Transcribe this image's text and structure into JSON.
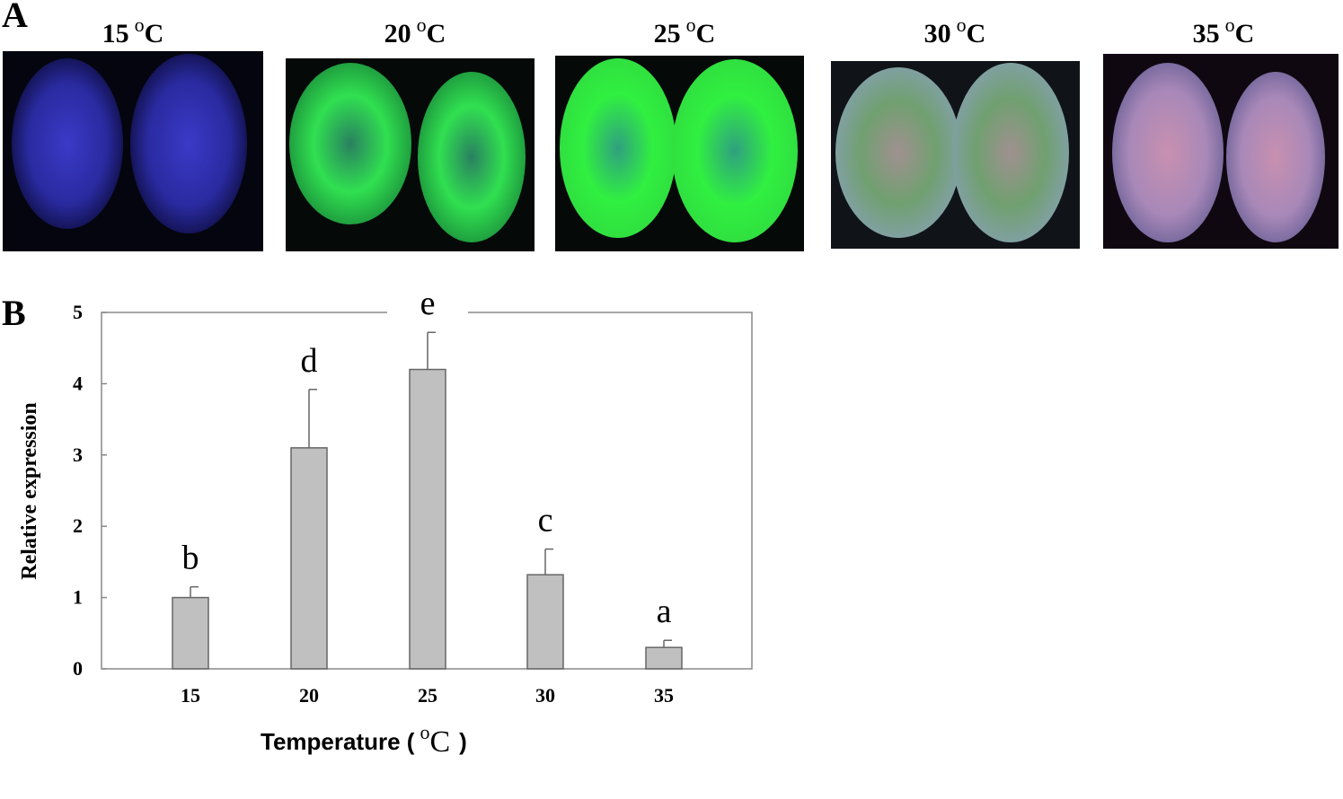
{
  "panel_a": {
    "label": "A",
    "titles": [
      {
        "temp": "15",
        "sup": "o",
        "unit": "C"
      },
      {
        "temp": "20",
        "sup": "o",
        "unit": "C"
      },
      {
        "temp": "25",
        "sup": "o",
        "unit": "C"
      },
      {
        "temp": "30",
        "sup": "o",
        "unit": "C"
      },
      {
        "temp": "35",
        "sup": "o",
        "unit": "C"
      }
    ]
  },
  "chart_data": {
    "type": "bar",
    "panel_label": "B",
    "y_label": "Relative expression",
    "x_label": {
      "text": "Temperature (",
      "sup": "o",
      "unit": "C",
      "close": ")"
    },
    "categories": [
      "15",
      "20",
      "25",
      "30",
      "35"
    ],
    "values": [
      1.0,
      3.1,
      4.2,
      1.32,
      0.3
    ],
    "errors": [
      0.15,
      0.82,
      0.52,
      0.36,
      0.1
    ],
    "annotations": [
      "b",
      "d",
      "e",
      "c",
      "a"
    ],
    "color": "#c0c0c0",
    "ylim": [
      0,
      5
    ],
    "yticks": [
      0,
      1,
      2,
      3,
      4,
      5
    ]
  }
}
